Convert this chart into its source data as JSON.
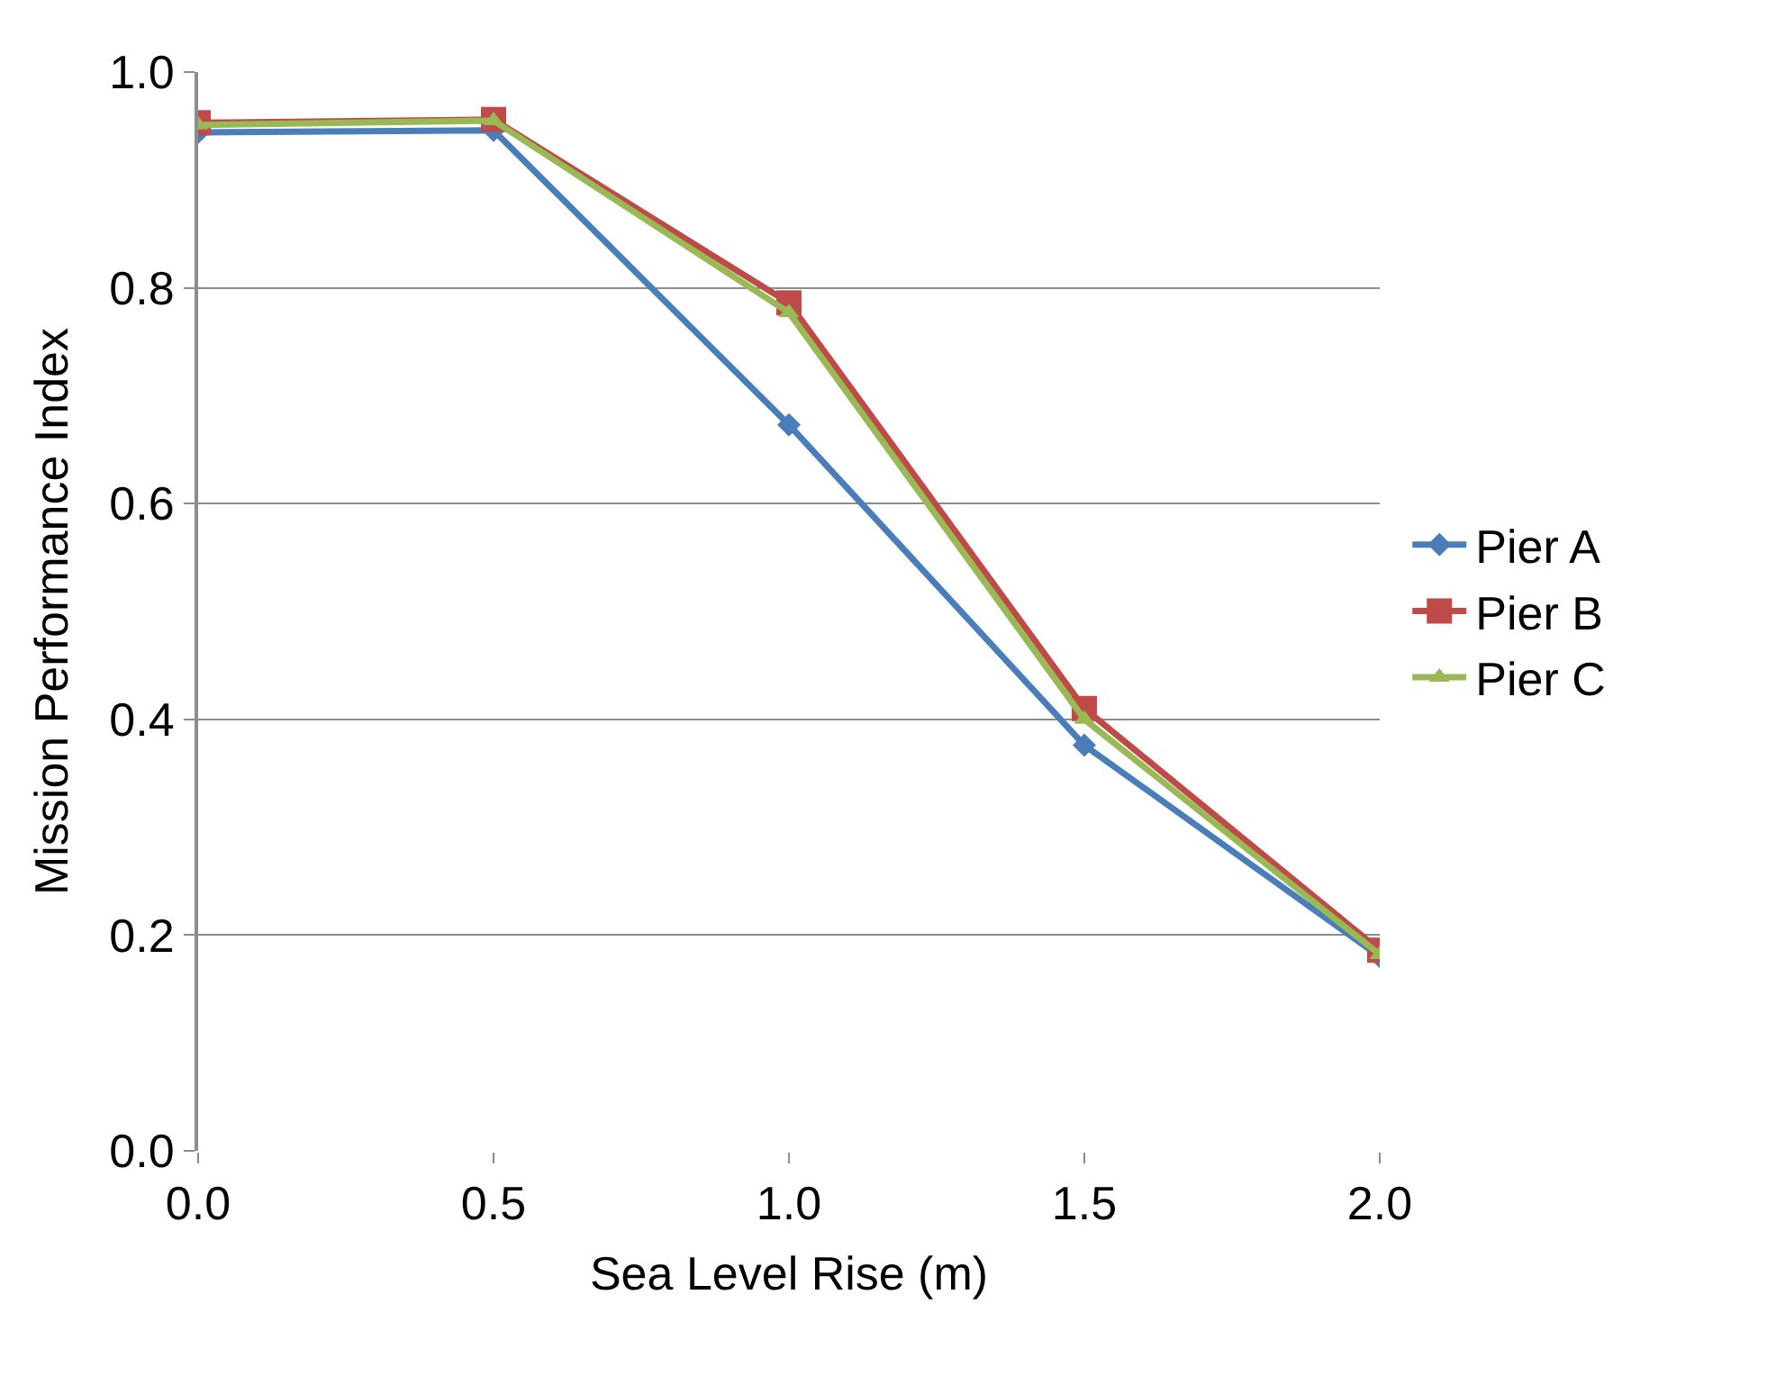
{
  "chart_data": {
    "type": "line",
    "xlabel": "Sea Level Rise (m)",
    "ylabel": "Mission Performance Index",
    "x": [
      0.0,
      0.5,
      1.0,
      1.5,
      2.0
    ],
    "series": [
      {
        "name": "Pier A",
        "color": "#4a7ebb",
        "marker": "diamond",
        "values": [
          0.944,
          0.946,
          0.673,
          0.376,
          0.18
        ]
      },
      {
        "name": "Pier B",
        "color": "#be4b48",
        "marker": "square",
        "values": [
          0.953,
          0.956,
          0.786,
          0.41,
          0.186
        ]
      },
      {
        "name": "Pier C",
        "color": "#98b954",
        "marker": "triangle",
        "values": [
          0.951,
          0.955,
          0.777,
          0.4,
          0.182
        ]
      }
    ],
    "xlim": [
      0.0,
      2.0
    ],
    "xticks": [
      {
        "value": 0,
        "label": "0.0"
      },
      0.5,
      {
        "value": 1,
        "label": "1.0"
      },
      1.5,
      {
        "value": 2,
        "label": "2.0"
      }
    ],
    "ylim": [
      0.0,
      1.0
    ],
    "yticks": [
      {
        "value": 0,
        "label": "0.0"
      },
      0.2,
      0.4,
      0.6,
      0.8,
      {
        "value": 1,
        "label": "1.0"
      }
    ],
    "grid": "y",
    "legend": "right",
    "line_style": "solid"
  }
}
